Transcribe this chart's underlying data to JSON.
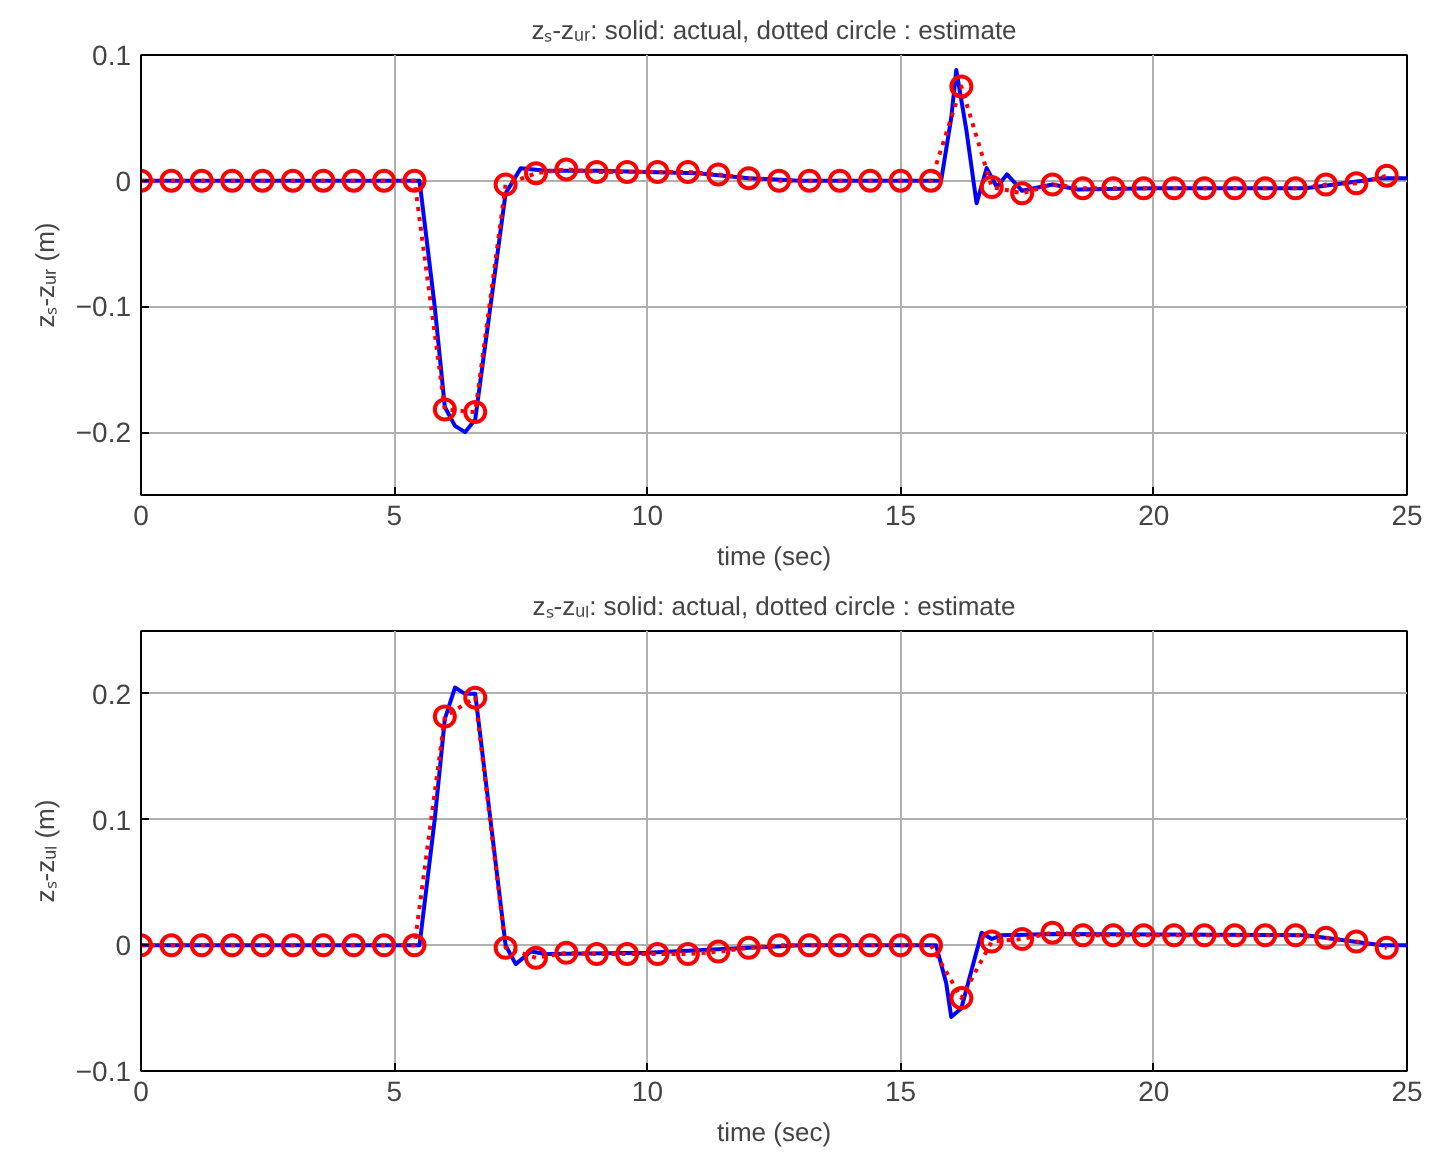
{
  "chart_data": [
    {
      "type": "line",
      "title": "zₛ-zᵤᵣ: solid: actual, dotted circle : estimate",
      "xlabel": "time (sec)",
      "ylabel": "zₛ-zᵤᵣ (m)",
      "xlim": [
        0,
        25
      ],
      "xticks": [
        0,
        5,
        10,
        15,
        20,
        25
      ],
      "ylim": [
        -0.25,
        0.1
      ],
      "yticks": [
        -0.2,
        -0.1,
        0,
        0.1
      ],
      "grid": true,
      "series": [
        {
          "color": "#0000ff",
          "line_style": "solid",
          "marker": "none",
          "x": [
            0,
            5.4,
            5.5,
            5.8,
            6.0,
            6.2,
            6.4,
            6.6,
            6.9,
            7.2,
            7.5,
            8,
            9,
            10,
            11,
            12,
            13,
            15.8,
            16.0,
            16.1,
            16.3,
            16.5,
            16.7,
            16.9,
            17.1,
            17.4,
            18,
            18.5,
            20,
            23,
            24.5,
            25
          ],
          "values": [
            0,
            0,
            0,
            -0.1,
            -0.18,
            -0.195,
            -0.2,
            -0.19,
            -0.1,
            -0.01,
            0.01,
            0.008,
            0.008,
            0.007,
            0.006,
            0.002,
            0,
            0,
            0.05,
            0.088,
            0.04,
            -0.018,
            0.01,
            -0.005,
            0.005,
            -0.008,
            -0.003,
            -0.007,
            -0.006,
            -0.006,
            0.002,
            0.002
          ]
        },
        {
          "color": "#ff0000",
          "line_style": "dotted",
          "marker": "circle",
          "x": [
            0,
            0.6,
            1.2,
            1.8,
            2.4,
            3.0,
            3.6,
            4.2,
            4.8,
            5.4,
            6.0,
            6.6,
            7.2,
            7.8,
            8.4,
            9.0,
            9.6,
            10.2,
            10.8,
            11.4,
            12.0,
            12.6,
            13.2,
            13.8,
            14.4,
            15.0,
            15.6,
            16.2,
            16.8,
            17.4,
            18.0,
            18.6,
            19.2,
            19.8,
            20.4,
            21.0,
            21.6,
            22.2,
            22.8,
            23.4,
            24.0,
            24.6
          ],
          "values": [
            0,
            0,
            0,
            0,
            0,
            0,
            0,
            0,
            0,
            0,
            -0.182,
            -0.184,
            -0.003,
            0.006,
            0.009,
            0.007,
            0.007,
            0.007,
            0.007,
            0.005,
            0.002,
            0,
            0,
            0,
            0,
            0,
            0,
            0.075,
            -0.005,
            -0.01,
            -0.003,
            -0.006,
            -0.006,
            -0.006,
            -0.006,
            -0.006,
            -0.006,
            -0.006,
            -0.006,
            -0.003,
            -0.002,
            0.004
          ]
        }
      ]
    },
    {
      "type": "line",
      "title": "zₛ-zᵤₗ: solid: actual, dotted circle : estimate",
      "xlabel": "time (sec)",
      "ylabel": "zₛ-zᵤₗ (m)",
      "xlim": [
        0,
        25
      ],
      "xticks": [
        0,
        5,
        10,
        15,
        20,
        25
      ],
      "ylim": [
        -0.1,
        0.25
      ],
      "yticks": [
        -0.1,
        0,
        0.1,
        0.2
      ],
      "grid": true,
      "series": [
        {
          "color": "#0000ff",
          "line_style": "solid",
          "marker": "none",
          "x": [
            0,
            5.4,
            5.5,
            5.8,
            6.0,
            6.2,
            6.4,
            6.6,
            6.9,
            7.2,
            7.4,
            7.7,
            8,
            10,
            12,
            13,
            15.7,
            15.9,
            16.0,
            16.2,
            16.4,
            16.6,
            16.8,
            17,
            18,
            23,
            24.5,
            25
          ],
          "values": [
            0,
            0,
            0,
            0.1,
            0.18,
            0.205,
            0.2,
            0.2,
            0.1,
            0,
            -0.015,
            -0.005,
            -0.007,
            -0.006,
            -0.002,
            0,
            0,
            -0.03,
            -0.057,
            -0.05,
            -0.02,
            0.01,
            0.005,
            0.008,
            0.009,
            0.008,
            0,
            0
          ]
        },
        {
          "color": "#ff0000",
          "line_style": "dotted",
          "marker": "circle",
          "x": [
            0,
            0.6,
            1.2,
            1.8,
            2.4,
            3.0,
            3.6,
            4.2,
            4.8,
            5.4,
            6.0,
            6.6,
            7.2,
            7.8,
            8.4,
            9.0,
            9.6,
            10.2,
            10.8,
            11.4,
            12.0,
            12.6,
            13.2,
            13.8,
            14.4,
            15.0,
            15.6,
            16.2,
            16.8,
            17.4,
            18.0,
            18.6,
            19.2,
            19.8,
            20.4,
            21.0,
            21.6,
            22.2,
            22.8,
            23.4,
            24.0,
            24.6
          ],
          "values": [
            0,
            0,
            0,
            0,
            0,
            0,
            0,
            0,
            0,
            0,
            0.182,
            0.197,
            -0.002,
            -0.01,
            -0.006,
            -0.007,
            -0.007,
            -0.007,
            -0.007,
            -0.005,
            -0.002,
            0,
            0,
            0,
            0,
            0,
            0,
            -0.042,
            0.003,
            0.005,
            0.01,
            0.008,
            0.008,
            0.008,
            0.008,
            0.008,
            0.008,
            0.008,
            0.008,
            0.006,
            0.003,
            -0.002
          ]
        }
      ]
    }
  ]
}
